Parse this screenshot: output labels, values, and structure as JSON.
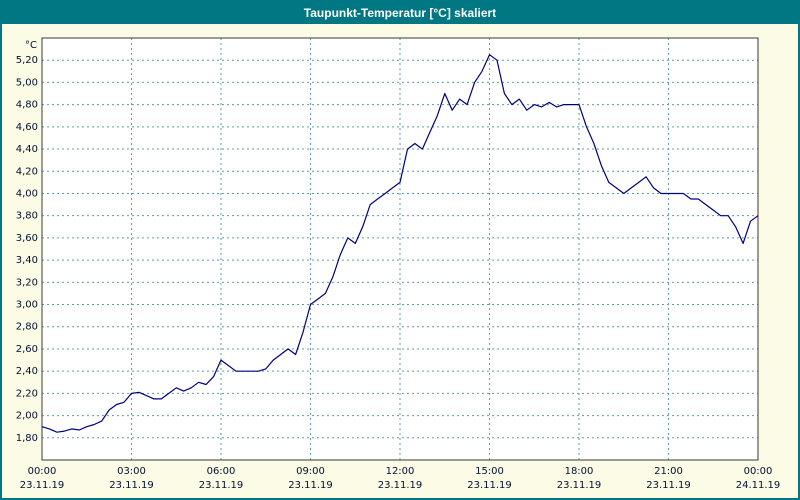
{
  "window": {
    "title": "Taupunkt-Temperatur [°C] skaliert"
  },
  "chart_data": {
    "type": "line",
    "title": "Taupunkt-Temperatur [°C] skaliert",
    "ylabel": "°C",
    "xlabel": "",
    "xlim": [
      0,
      24
    ],
    "ylim": [
      1.6,
      5.4
    ],
    "grid": true,
    "legend": "none",
    "line_color": "#000080",
    "grid_color": "#5f9ea0",
    "frame_color": "#3a3a3a",
    "plot_bg": "#ffffff",
    "y_tick_values": [
      5.2,
      5.0,
      4.8,
      4.6,
      4.4,
      4.2,
      4.0,
      3.8,
      3.6,
      3.4,
      3.2,
      3.0,
      2.8,
      2.6,
      2.4,
      2.2,
      2.0,
      1.8
    ],
    "y_tick_labels": [
      "5,20",
      "5,00",
      "4,80",
      "4,60",
      "4,40",
      "4,20",
      "4,00",
      "3,80",
      "3,60",
      "3,40",
      "3,20",
      "3,00",
      "2,80",
      "2,60",
      "2,40",
      "2,20",
      "2,00",
      "1,80"
    ],
    "x_tick_hours": [
      0,
      3,
      6,
      9,
      12,
      15,
      18,
      21,
      24
    ],
    "x_tick_times": [
      "00:00",
      "03:00",
      "06:00",
      "09:00",
      "12:00",
      "15:00",
      "18:00",
      "21:00",
      "00:00"
    ],
    "x_tick_dates": [
      "23.11.19",
      "23.11.19",
      "23.11.19",
      "23.11.19",
      "23.11.19",
      "23.11.19",
      "23.11.19",
      "23.11.19",
      "24.11.19"
    ],
    "x": [
      0,
      0.25,
      0.5,
      0.75,
      1,
      1.25,
      1.5,
      1.75,
      2,
      2.25,
      2.5,
      2.75,
      3,
      3.25,
      3.5,
      3.75,
      4,
      4.25,
      4.5,
      4.75,
      5,
      5.25,
      5.5,
      5.75,
      6,
      6.25,
      6.5,
      6.75,
      7,
      7.25,
      7.5,
      7.75,
      8,
      8.25,
      8.5,
      8.75,
      9,
      9.25,
      9.5,
      9.75,
      10,
      10.25,
      10.5,
      10.75,
      11,
      11.25,
      11.5,
      11.75,
      12,
      12.25,
      12.5,
      12.75,
      13,
      13.25,
      13.5,
      13.75,
      14,
      14.25,
      14.5,
      14.75,
      15,
      15.25,
      15.5,
      15.75,
      16,
      16.25,
      16.5,
      16.75,
      17,
      17.25,
      17.5,
      17.75,
      18,
      18.25,
      18.5,
      18.75,
      19,
      19.25,
      19.5,
      19.75,
      20,
      20.25,
      20.5,
      20.75,
      21,
      21.25,
      21.5,
      21.75,
      22,
      22.25,
      22.5,
      22.75,
      23,
      23.25,
      23.5,
      23.75,
      24
    ],
    "y": [
      1.9,
      1.88,
      1.85,
      1.86,
      1.88,
      1.87,
      1.9,
      1.92,
      1.95,
      2.05,
      2.1,
      2.12,
      2.2,
      2.21,
      2.18,
      2.15,
      2.15,
      2.2,
      2.25,
      2.22,
      2.25,
      2.3,
      2.28,
      2.35,
      2.5,
      2.45,
      2.4,
      2.4,
      2.4,
      2.4,
      2.42,
      2.5,
      2.55,
      2.6,
      2.55,
      2.75,
      3.0,
      3.05,
      3.1,
      3.25,
      3.45,
      3.6,
      3.55,
      3.7,
      3.9,
      3.95,
      4.0,
      4.05,
      4.1,
      4.4,
      4.45,
      4.4,
      4.55,
      4.7,
      4.9,
      4.75,
      4.85,
      4.8,
      5.0,
      5.1,
      5.25,
      5.2,
      4.9,
      4.8,
      4.85,
      4.75,
      4.8,
      4.78,
      4.82,
      4.78,
      4.8,
      4.8,
      4.8,
      4.6,
      4.45,
      4.25,
      4.1,
      4.05,
      4.0,
      4.05,
      4.1,
      4.15,
      4.05,
      4.0,
      4.0,
      4.0,
      4.0,
      3.95,
      3.95,
      3.9,
      3.85,
      3.8,
      3.8,
      3.7,
      3.55,
      3.75,
      3.8
    ]
  }
}
